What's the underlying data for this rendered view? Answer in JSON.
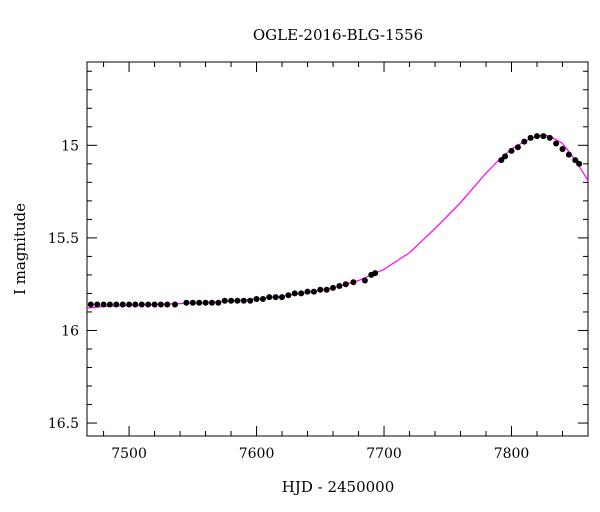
{
  "chart_data": {
    "type": "scatter",
    "title": "OGLE-2016-BLG-1556",
    "xlabel": "HJD - 2450000",
    "ylabel": "I magnitude",
    "xlim": [
      7467,
      7860
    ],
    "ylim": [
      16.57,
      14.55
    ],
    "y_inverted": true,
    "grid": false,
    "x_ticks": [
      7500,
      7600,
      7700,
      7800
    ],
    "x_tick_labels": [
      "7500",
      "7600",
      "7700",
      "7800"
    ],
    "y_ticks": [
      15,
      15.5,
      16,
      16.5
    ],
    "y_tick_labels": [
      "15",
      "15.5",
      "16",
      "16.5"
    ],
    "colors": {
      "data": "#000000",
      "model": "#ff00ff"
    },
    "series": [
      {
        "kind": "points",
        "x": [
          7470,
          7475,
          7480,
          7485,
          7490,
          7495,
          7500,
          7505,
          7510,
          7515,
          7520,
          7525,
          7530,
          7536,
          7545,
          7550,
          7555,
          7560,
          7565,
          7570,
          7575,
          7580,
          7585,
          7590,
          7595,
          7600,
          7605,
          7610,
          7615,
          7620,
          7625,
          7630,
          7635,
          7640,
          7645,
          7650,
          7655,
          7660,
          7665,
          7670,
          7676,
          7685,
          7690,
          7693,
          7792,
          7795,
          7800,
          7805,
          7810,
          7815,
          7820,
          7825,
          7830,
          7835,
          7840,
          7845,
          7850,
          7853
        ],
        "y": [
          15.86,
          15.86,
          15.86,
          15.86,
          15.86,
          15.86,
          15.86,
          15.86,
          15.86,
          15.86,
          15.86,
          15.86,
          15.86,
          15.86,
          15.85,
          15.85,
          15.85,
          15.85,
          15.85,
          15.85,
          15.84,
          15.84,
          15.84,
          15.84,
          15.84,
          15.83,
          15.83,
          15.82,
          15.82,
          15.82,
          15.81,
          15.8,
          15.8,
          15.79,
          15.79,
          15.78,
          15.78,
          15.77,
          15.76,
          15.75,
          15.74,
          15.73,
          15.7,
          15.69,
          15.08,
          15.06,
          15.03,
          15.01,
          14.98,
          14.96,
          14.95,
          14.95,
          14.96,
          14.99,
          15.02,
          15.05,
          15.08,
          15.1
        ]
      },
      {
        "kind": "model",
        "x": [
          7467,
          7480,
          7500,
          7520,
          7540,
          7560,
          7580,
          7600,
          7620,
          7640,
          7660,
          7680,
          7700,
          7720,
          7740,
          7760,
          7780,
          7790,
          7800,
          7810,
          7820,
          7825,
          7830,
          7840,
          7850,
          7860
        ],
        "y": [
          15.88,
          15.87,
          15.865,
          15.86,
          15.855,
          15.85,
          15.84,
          15.83,
          15.815,
          15.795,
          15.77,
          15.73,
          15.67,
          15.58,
          15.45,
          15.31,
          15.15,
          15.08,
          15.02,
          14.98,
          14.95,
          14.945,
          14.95,
          14.99,
          15.08,
          15.19
        ]
      }
    ]
  }
}
